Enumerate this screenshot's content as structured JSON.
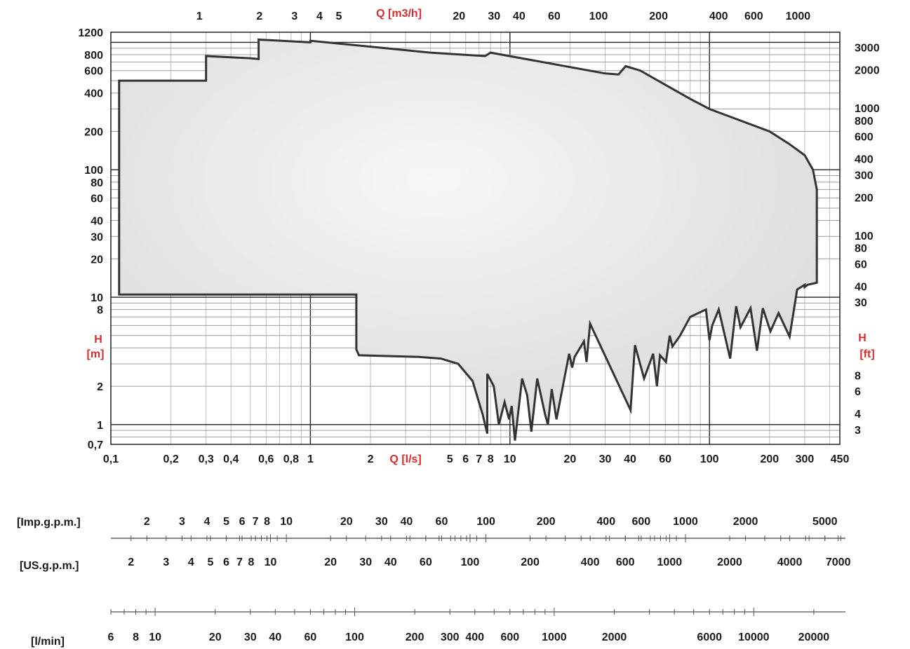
{
  "chart_data": {
    "type": "area",
    "title": "",
    "scale": "log-log",
    "colors": {
      "envelope_fill": "#e8e8e8",
      "envelope_stroke": "#333333",
      "grid": "#222222",
      "axis_title": "#d32f2f",
      "text": "#1a1a1a"
    },
    "x_axis_bottom": {
      "label": "Q [l/s]",
      "range": [
        0.1,
        450
      ],
      "ticks": [
        "0,1",
        "0,2",
        "0,3",
        "0,4",
        "0,6",
        "0,8",
        "1",
        "2",
        "5",
        "6",
        "7",
        "8",
        "10",
        "20",
        "30",
        "40",
        "60",
        "100",
        "200",
        "300",
        "450"
      ]
    },
    "x_axis_top": {
      "label": "Q [m3/h]",
      "ticks": [
        "1",
        "2",
        "3",
        "4",
        "5",
        "20",
        "30",
        "40",
        "60",
        "100",
        "200",
        "400",
        "600",
        "1000"
      ]
    },
    "y_axis_left": {
      "label_line1": "H",
      "label_line2": "[m]",
      "range": [
        0.7,
        1200
      ],
      "ticks": [
        "1200",
        "800",
        "600",
        "400",
        "200",
        "100",
        "80",
        "60",
        "40",
        "30",
        "20",
        "10",
        "8",
        "2",
        "1",
        "0,7"
      ]
    },
    "y_axis_right": {
      "label_line1": "H",
      "label_line2": "[ft]",
      "ticks": [
        "3000",
        "2000",
        "1000",
        "800",
        "600",
        "400",
        "300",
        "200",
        "100",
        "80",
        "60",
        "40",
        "30",
        "8",
        "6",
        "4",
        "3"
      ]
    },
    "envelope_upper": {
      "q_ls": [
        0.11,
        0.11,
        0.3,
        0.3,
        0.5,
        0.55,
        0.55,
        1.0,
        1.0,
        4.0,
        7.5,
        8.0,
        30,
        35,
        38,
        45,
        80,
        100,
        200,
        250,
        300,
        330,
        345,
        345,
        310,
        300
      ],
      "h_m": [
        10.5,
        500,
        500,
        780,
        750,
        740,
        1050,
        1000,
        1030,
        830,
        780,
        830,
        570,
        560,
        650,
        600,
        360,
        300,
        200,
        160,
        130,
        100,
        70,
        13,
        12.5,
        12
      ]
    },
    "envelope_lower": {
      "q_ls": [
        0.11,
        1.7,
        1.7,
        1.75,
        3.5,
        4.5,
        5.5,
        6.5,
        7.3,
        7.7,
        7.7,
        8.3,
        8.8,
        9.4,
        9.9,
        10.2,
        10.6,
        11.5,
        12.2,
        12.8,
        13.7,
        15.0,
        15.5,
        16.2,
        17.1,
        19.8,
        20.5,
        21.1,
        23.5,
        24.2,
        25.2,
        40.2,
        42.3,
        47.0,
        52.2,
        54.5,
        56.5,
        60.5,
        63.2,
        65.2,
        71.2,
        80.0,
        96.0,
        100.0,
        103.2,
        111.3,
        127.0,
        136.0,
        143.0,
        160.5,
        173.0,
        185.0,
        202.0,
        222.0,
        252.0,
        275.0,
        300.0
      ],
      "h_m": [
        10.5,
        10.5,
        3.9,
        3.5,
        3.4,
        3.3,
        3.0,
        2.2,
        1.2,
        0.85,
        2.5,
        2.0,
        1.0,
        1.5,
        1.1,
        1.4,
        0.75,
        2.3,
        1.7,
        0.88,
        2.3,
        1.2,
        1.0,
        1.9,
        1.1,
        3.6,
        2.8,
        3.4,
        4.5,
        3.1,
        6.2,
        1.3,
        4.2,
        2.3,
        3.6,
        2.0,
        3.5,
        3.1,
        5.0,
        4.1,
        5.0,
        7.0,
        8.0,
        4.6,
        6.0,
        8.0,
        3.3,
        8.5,
        5.8,
        8.2,
        3.8,
        8.2,
        5.4,
        7.5,
        4.9,
        11.5,
        12.5
      ]
    },
    "grid": true
  },
  "flow_scales": [
    {
      "label": "[Imp.g.p.m.]",
      "numbers": [
        "2",
        "3",
        "4",
        "5",
        "6",
        "7",
        "8",
        "10",
        "20",
        "30",
        "40",
        "60",
        "100",
        "200",
        "400",
        "600",
        "1000",
        "2000",
        "5000"
      ]
    },
    {
      "label": "[US.g.p.m.]",
      "numbers": [
        "2",
        "3",
        "4",
        "5",
        "6",
        "7",
        "8",
        "10",
        "20",
        "30",
        "40",
        "60",
        "100",
        "200",
        "400",
        "600",
        "1000",
        "2000",
        "4000",
        "7000"
      ]
    },
    {
      "label": "[l/min]",
      "numbers": [
        "6",
        "8",
        "10",
        "20",
        "30",
        "40",
        "60",
        "100",
        "200",
        "300",
        "400",
        "600",
        "1000",
        "2000",
        "6000",
        "10000",
        "20000"
      ]
    }
  ]
}
